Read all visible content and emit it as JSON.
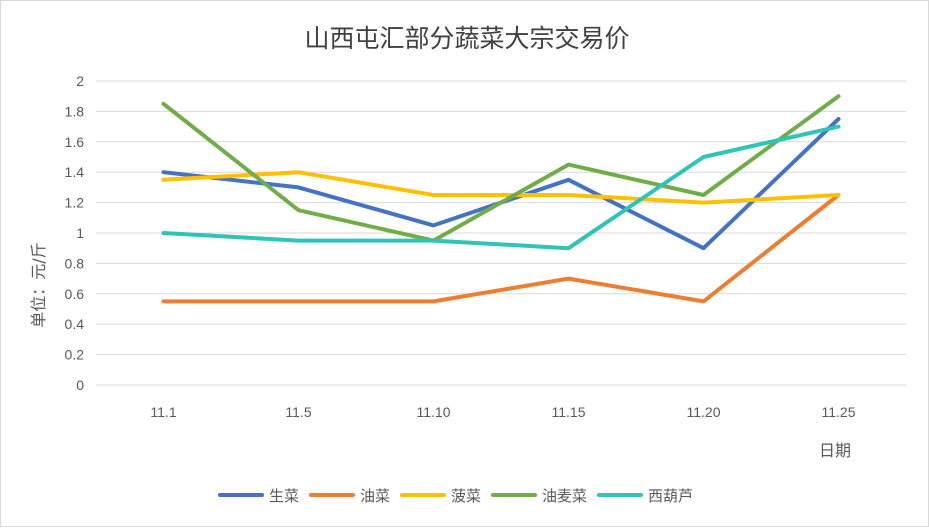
{
  "chart_data": {
    "type": "line",
    "title": "山西屯汇部分蔬菜大宗交易价",
    "xlabel": "日期",
    "ylabel": "单位：元/斤",
    "categories": [
      "11.1",
      "11.5",
      "11.10",
      "11.15",
      "11.20",
      "11.25"
    ],
    "ylim": [
      0,
      2
    ],
    "yticks": [
      "0",
      "0.2",
      "0.4",
      "0.6",
      "0.8",
      "1",
      "1.2",
      "1.4",
      "1.6",
      "1.8",
      "2"
    ],
    "grid": true,
    "legend_position": "bottom",
    "series": [
      {
        "name": "生菜",
        "color": "#4472C4",
        "values": [
          1.4,
          1.3,
          1.05,
          1.35,
          0.9,
          1.75
        ]
      },
      {
        "name": "油菜",
        "color": "#ED7D31",
        "values": [
          0.55,
          0.55,
          0.55,
          0.7,
          0.55,
          1.25
        ]
      },
      {
        "name": "菠菜",
        "color": "#FFC000",
        "values": [
          1.35,
          1.4,
          1.25,
          1.25,
          1.2,
          1.25
        ]
      },
      {
        "name": "油麦菜",
        "color": "#70AD47",
        "values": [
          1.85,
          1.15,
          0.95,
          1.45,
          1.25,
          1.9
        ]
      },
      {
        "name": "西葫芦",
        "color": "#2EC4B6",
        "values": [
          1.0,
          0.95,
          0.95,
          0.9,
          1.5,
          1.7
        ]
      }
    ]
  }
}
